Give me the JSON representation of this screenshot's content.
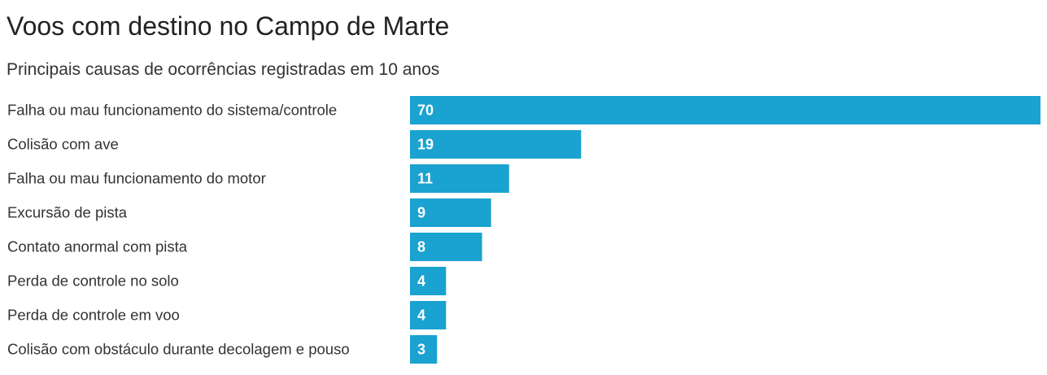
{
  "title": "Voos com destino no Campo de Marte",
  "subtitle": "Principais causas de ocorrências registradas em 10 anos",
  "bar_color": "#1aa2d0",
  "chart_data": {
    "type": "bar",
    "orientation": "horizontal",
    "title": "Voos com destino no Campo de Marte",
    "subtitle": "Principais causas de ocorrências registradas em 10 anos",
    "categories": [
      "Falha ou mau funcionamento do sistema/controle",
      "Colisão com ave",
      "Falha ou mau funcionamento do motor",
      "Excursão de pista",
      "Contato anormal com pista",
      "Perda de controle no solo",
      "Perda de controle em voo",
      "Colisão com obstáculo durante decolagem e pouso"
    ],
    "values": [
      70,
      19,
      11,
      9,
      8,
      4,
      4,
      3
    ],
    "xlim": [
      0,
      70
    ],
    "grid": false,
    "data_labels": true
  }
}
